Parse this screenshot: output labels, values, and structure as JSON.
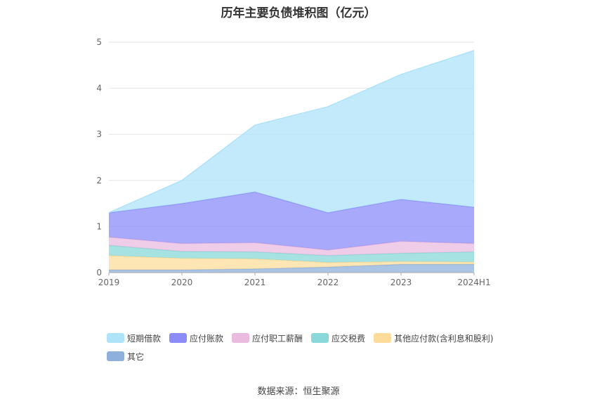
{
  "chart_data": {
    "type": "area",
    "stacked": true,
    "title": "历年主要负债堆积图（亿元）",
    "categories": [
      "2019",
      "2020",
      "2021",
      "2022",
      "2023",
      "2024H1"
    ],
    "ylim": [
      0,
      5
    ],
    "yticks": [
      "0",
      "1",
      "2",
      "3",
      "4",
      "5"
    ],
    "grid": true,
    "legend_position": "bottom",
    "series": [
      {
        "name": "其它",
        "color": "#8eb0dc",
        "values": [
          0.06,
          0.06,
          0.08,
          0.12,
          0.18,
          0.18
        ]
      },
      {
        "name": "其他应付款(含利息和股利)",
        "color": "#fddc9b",
        "values": [
          0.31,
          0.25,
          0.22,
          0.1,
          0.06,
          0.05
        ]
      },
      {
        "name": "应交税费",
        "color": "#8ad8d8",
        "values": [
          0.22,
          0.15,
          0.15,
          0.15,
          0.18,
          0.22
        ]
      },
      {
        "name": "应付职工薪酬",
        "color": "#eabbdf",
        "values": [
          0.18,
          0.17,
          0.2,
          0.12,
          0.26,
          0.18
        ]
      },
      {
        "name": "应付账款",
        "color": "#8b8cf8",
        "values": [
          0.53,
          0.87,
          1.1,
          0.81,
          0.91,
          0.79
        ]
      },
      {
        "name": "短期借款",
        "color": "#aee3fa",
        "values": [
          0.0,
          0.5,
          1.45,
          2.3,
          2.71,
          3.4
        ]
      }
    ]
  },
  "legend_order": [
    {
      "name": "短期借款",
      "color": "#aee3fa"
    },
    {
      "name": "应付账款",
      "color": "#8b8cf8"
    },
    {
      "name": "应付职工薪酬",
      "color": "#eabbdf"
    },
    {
      "name": "应交税费",
      "color": "#8ad8d8"
    },
    {
      "name": "其他应付款(含利息和股利)",
      "color": "#fddc9b"
    },
    {
      "name": "其它",
      "color": "#8eb0dc"
    }
  ],
  "source_text": "数据来源：恒生聚源"
}
